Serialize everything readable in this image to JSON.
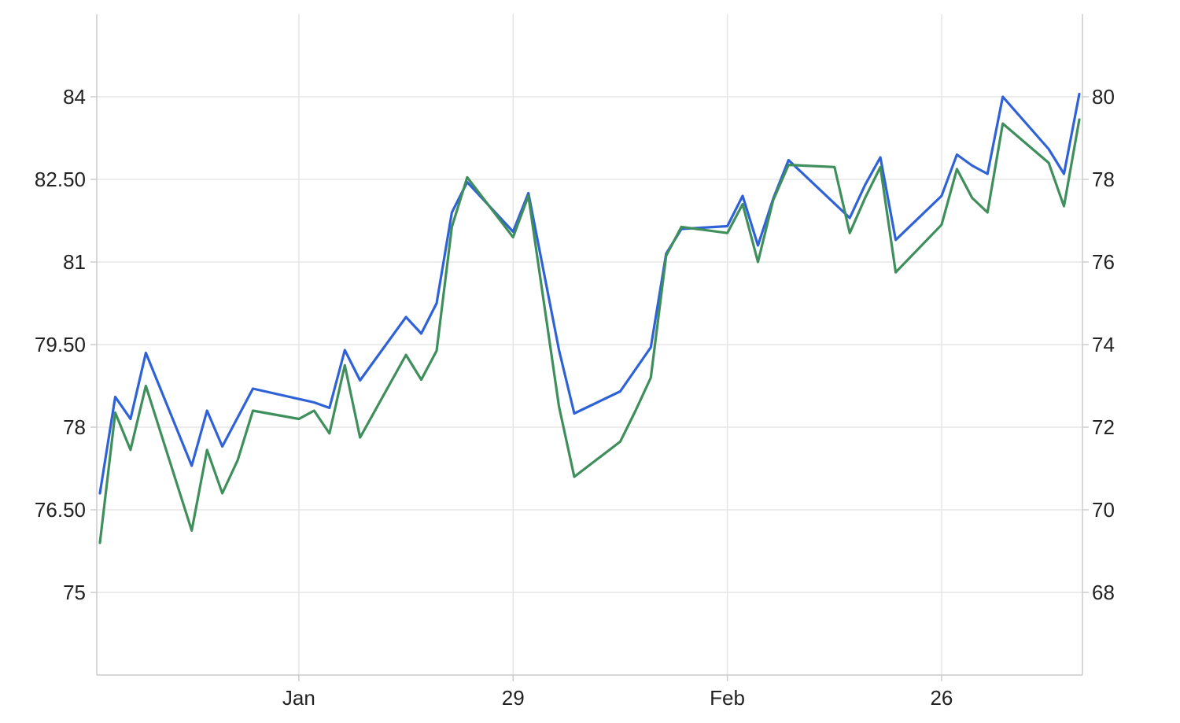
{
  "chart_data": {
    "type": "line",
    "title": "",
    "xlabel": "",
    "ylabel": "",
    "grid": true,
    "legend": "none",
    "x_range_index": [
      0,
      64
    ],
    "x_ticks": [
      {
        "label": "Jan",
        "index": 13
      },
      {
        "label": "29",
        "index": 27
      },
      {
        "label": "Feb",
        "index": 41
      },
      {
        "label": "26",
        "index": 55
      }
    ],
    "y_left": {
      "range": [
        73.5,
        85.5
      ],
      "ticks": [
        {
          "value": 75,
          "label": "75"
        },
        {
          "value": 76.5,
          "label": "76.50"
        },
        {
          "value": 78,
          "label": "78"
        },
        {
          "value": 79.5,
          "label": "79.50"
        },
        {
          "value": 81,
          "label": "81"
        },
        {
          "value": 82.5,
          "label": "82.50"
        },
        {
          "value": 84,
          "label": "84"
        }
      ]
    },
    "y_right": {
      "range": [
        66,
        82
      ],
      "ticks": [
        {
          "value": 68,
          "label": "68"
        },
        {
          "value": 70,
          "label": "70"
        },
        {
          "value": 72,
          "label": "72"
        },
        {
          "value": 74,
          "label": "74"
        },
        {
          "value": 76,
          "label": "76"
        },
        {
          "value": 78,
          "label": "78"
        },
        {
          "value": 80,
          "label": "80"
        }
      ]
    },
    "series": [
      {
        "color": "#2f62d6",
        "axis": "left",
        "points": [
          [
            0,
            76.8
          ],
          [
            1,
            78.55
          ],
          [
            2,
            78.15
          ],
          [
            3,
            79.35
          ],
          [
            6,
            77.3
          ],
          [
            7,
            78.3
          ],
          [
            8,
            77.65
          ],
          [
            10,
            78.7
          ],
          [
            14,
            78.45
          ],
          [
            15,
            78.35
          ],
          [
            16,
            79.4
          ],
          [
            17,
            78.85
          ],
          [
            20,
            80.0
          ],
          [
            21,
            79.7
          ],
          [
            22,
            80.25
          ],
          [
            23,
            81.9
          ],
          [
            24,
            82.45
          ],
          [
            27,
            81.55
          ],
          [
            28,
            82.25
          ],
          [
            30,
            79.4
          ],
          [
            31,
            78.25
          ],
          [
            34,
            78.65
          ],
          [
            36,
            79.45
          ],
          [
            37,
            81.15
          ],
          [
            38,
            81.6
          ],
          [
            41,
            81.65
          ],
          [
            42,
            82.2
          ],
          [
            43,
            81.3
          ],
          [
            44,
            82.15
          ],
          [
            45,
            82.85
          ],
          [
            49,
            81.8
          ],
          [
            50,
            82.4
          ],
          [
            51,
            82.9
          ],
          [
            52,
            81.4
          ],
          [
            55,
            82.2
          ],
          [
            56,
            82.95
          ],
          [
            57,
            82.75
          ],
          [
            58,
            82.6
          ],
          [
            59,
            84.0
          ],
          [
            62,
            83.05
          ],
          [
            63,
            82.6
          ],
          [
            64,
            84.05
          ]
        ]
      },
      {
        "color": "#3f8f5c",
        "axis": "right",
        "points": [
          [
            0,
            69.2
          ],
          [
            1,
            72.35
          ],
          [
            2,
            71.45
          ],
          [
            3,
            73.0
          ],
          [
            6,
            69.5
          ],
          [
            7,
            71.45
          ],
          [
            8,
            70.4
          ],
          [
            9,
            71.2
          ],
          [
            10,
            72.4
          ],
          [
            13,
            72.2
          ],
          [
            14,
            72.4
          ],
          [
            15,
            71.85
          ],
          [
            16,
            73.5
          ],
          [
            17,
            71.75
          ],
          [
            20,
            73.75
          ],
          [
            21,
            73.15
          ],
          [
            22,
            73.85
          ],
          [
            23,
            76.85
          ],
          [
            24,
            78.05
          ],
          [
            27,
            76.6
          ],
          [
            28,
            77.6
          ],
          [
            30,
            72.5
          ],
          [
            31,
            70.8
          ],
          [
            34,
            71.65
          ],
          [
            35,
            72.4
          ],
          [
            36,
            73.2
          ],
          [
            37,
            76.15
          ],
          [
            38,
            76.85
          ],
          [
            41,
            76.7
          ],
          [
            42,
            77.4
          ],
          [
            43,
            76.0
          ],
          [
            44,
            77.5
          ],
          [
            45,
            78.35
          ],
          [
            48,
            78.3
          ],
          [
            49,
            76.7
          ],
          [
            50,
            77.55
          ],
          [
            51,
            78.3
          ],
          [
            52,
            75.75
          ],
          [
            55,
            76.9
          ],
          [
            56,
            78.25
          ],
          [
            57,
            77.55
          ],
          [
            58,
            77.2
          ],
          [
            59,
            79.35
          ],
          [
            62,
            78.4
          ],
          [
            63,
            77.35
          ],
          [
            64,
            79.45
          ]
        ]
      }
    ]
  }
}
